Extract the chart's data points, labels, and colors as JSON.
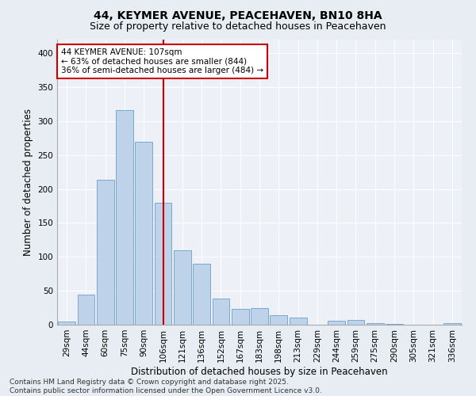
{
  "title_line1": "44, KEYMER AVENUE, PEACEHAVEN, BN10 8HA",
  "title_line2": "Size of property relative to detached houses in Peacehaven",
  "xlabel": "Distribution of detached houses by size in Peacehaven",
  "ylabel": "Number of detached properties",
  "categories": [
    "29sqm",
    "44sqm",
    "60sqm",
    "75sqm",
    "90sqm",
    "106sqm",
    "121sqm",
    "136sqm",
    "152sqm",
    "167sqm",
    "183sqm",
    "198sqm",
    "213sqm",
    "229sqm",
    "244sqm",
    "259sqm",
    "275sqm",
    "290sqm",
    "305sqm",
    "321sqm",
    "336sqm"
  ],
  "values": [
    5,
    44,
    213,
    316,
    270,
    180,
    110,
    90,
    38,
    23,
    25,
    14,
    11,
    0,
    6,
    7,
    2,
    1,
    0,
    0,
    2
  ],
  "bar_color": "#bed3e9",
  "bar_edge_color": "#6b9fc8",
  "vline_x_index": 5,
  "vline_color": "#cc0000",
  "annotation_text": "44 KEYMER AVENUE: 107sqm\n← 63% of detached houses are smaller (844)\n36% of semi-detached houses are larger (484) →",
  "annotation_box_color": "#ffffff",
  "annotation_box_edge": "#cc0000",
  "ylim": [
    0,
    420
  ],
  "yticks": [
    0,
    50,
    100,
    150,
    200,
    250,
    300,
    350,
    400
  ],
  "background_color": "#e8edf3",
  "plot_bg_color": "#edf1f7",
  "grid_color": "#ffffff",
  "footer_line1": "Contains HM Land Registry data © Crown copyright and database right 2025.",
  "footer_line2": "Contains public sector information licensed under the Open Government Licence v3.0.",
  "title_fontsize": 10,
  "subtitle_fontsize": 9,
  "axis_label_fontsize": 8.5,
  "tick_fontsize": 7.5,
  "annotation_fontsize": 7.5,
  "footer_fontsize": 6.5
}
